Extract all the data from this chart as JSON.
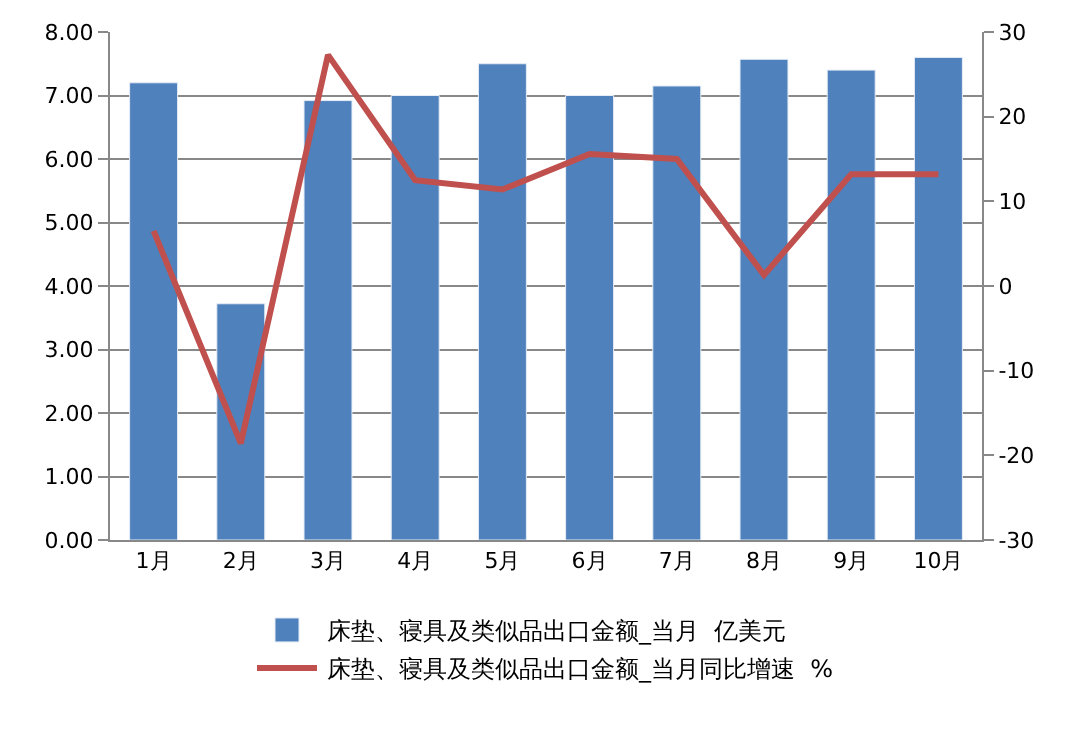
{
  "chart_data": {
    "type": "bar",
    "categories": [
      "1月",
      "2月",
      "3月",
      "4月",
      "5月",
      "6月",
      "7月",
      "8月",
      "9月",
      "10月"
    ],
    "series": [
      {
        "name": "床垫、寝具及类似品出口金额_当月  亿美元",
        "color": "#4f81bd",
        "values": [
          7.2,
          3.72,
          6.92,
          7.0,
          7.5,
          7.0,
          7.15,
          7.57,
          7.4,
          7.6
        ]
      },
      {
        "name": "床垫、寝具及类似品出口金额_当月同比增速  %",
        "type": "line",
        "axis": "y2",
        "color": "#c0504d",
        "values": [
          6.5,
          -18.6,
          27.3,
          12.5,
          11.4,
          15.6,
          15.0,
          1.3,
          13.2,
          13.2
        ]
      }
    ],
    "ylim": [
      0,
      8
    ],
    "yticks": [
      {
        "value": 0,
        "label": "0.00"
      },
      {
        "value": 1,
        "label": "1.00"
      },
      {
        "value": 2,
        "label": "2.00"
      },
      {
        "value": 3,
        "label": "3.00"
      },
      {
        "value": 4,
        "label": "4.00"
      },
      {
        "value": 5,
        "label": "5.00"
      },
      {
        "value": 6,
        "label": "6.00"
      },
      {
        "value": 7,
        "label": "7.00"
      },
      {
        "value": 8,
        "label": "8.00"
      }
    ],
    "y2lim": [
      -30,
      30
    ],
    "y2ticks": [
      -30,
      -20,
      -10,
      0,
      10,
      20,
      30
    ],
    "grid": "y",
    "legend": "bottom",
    "marker": "none",
    "line_style": "solid"
  }
}
